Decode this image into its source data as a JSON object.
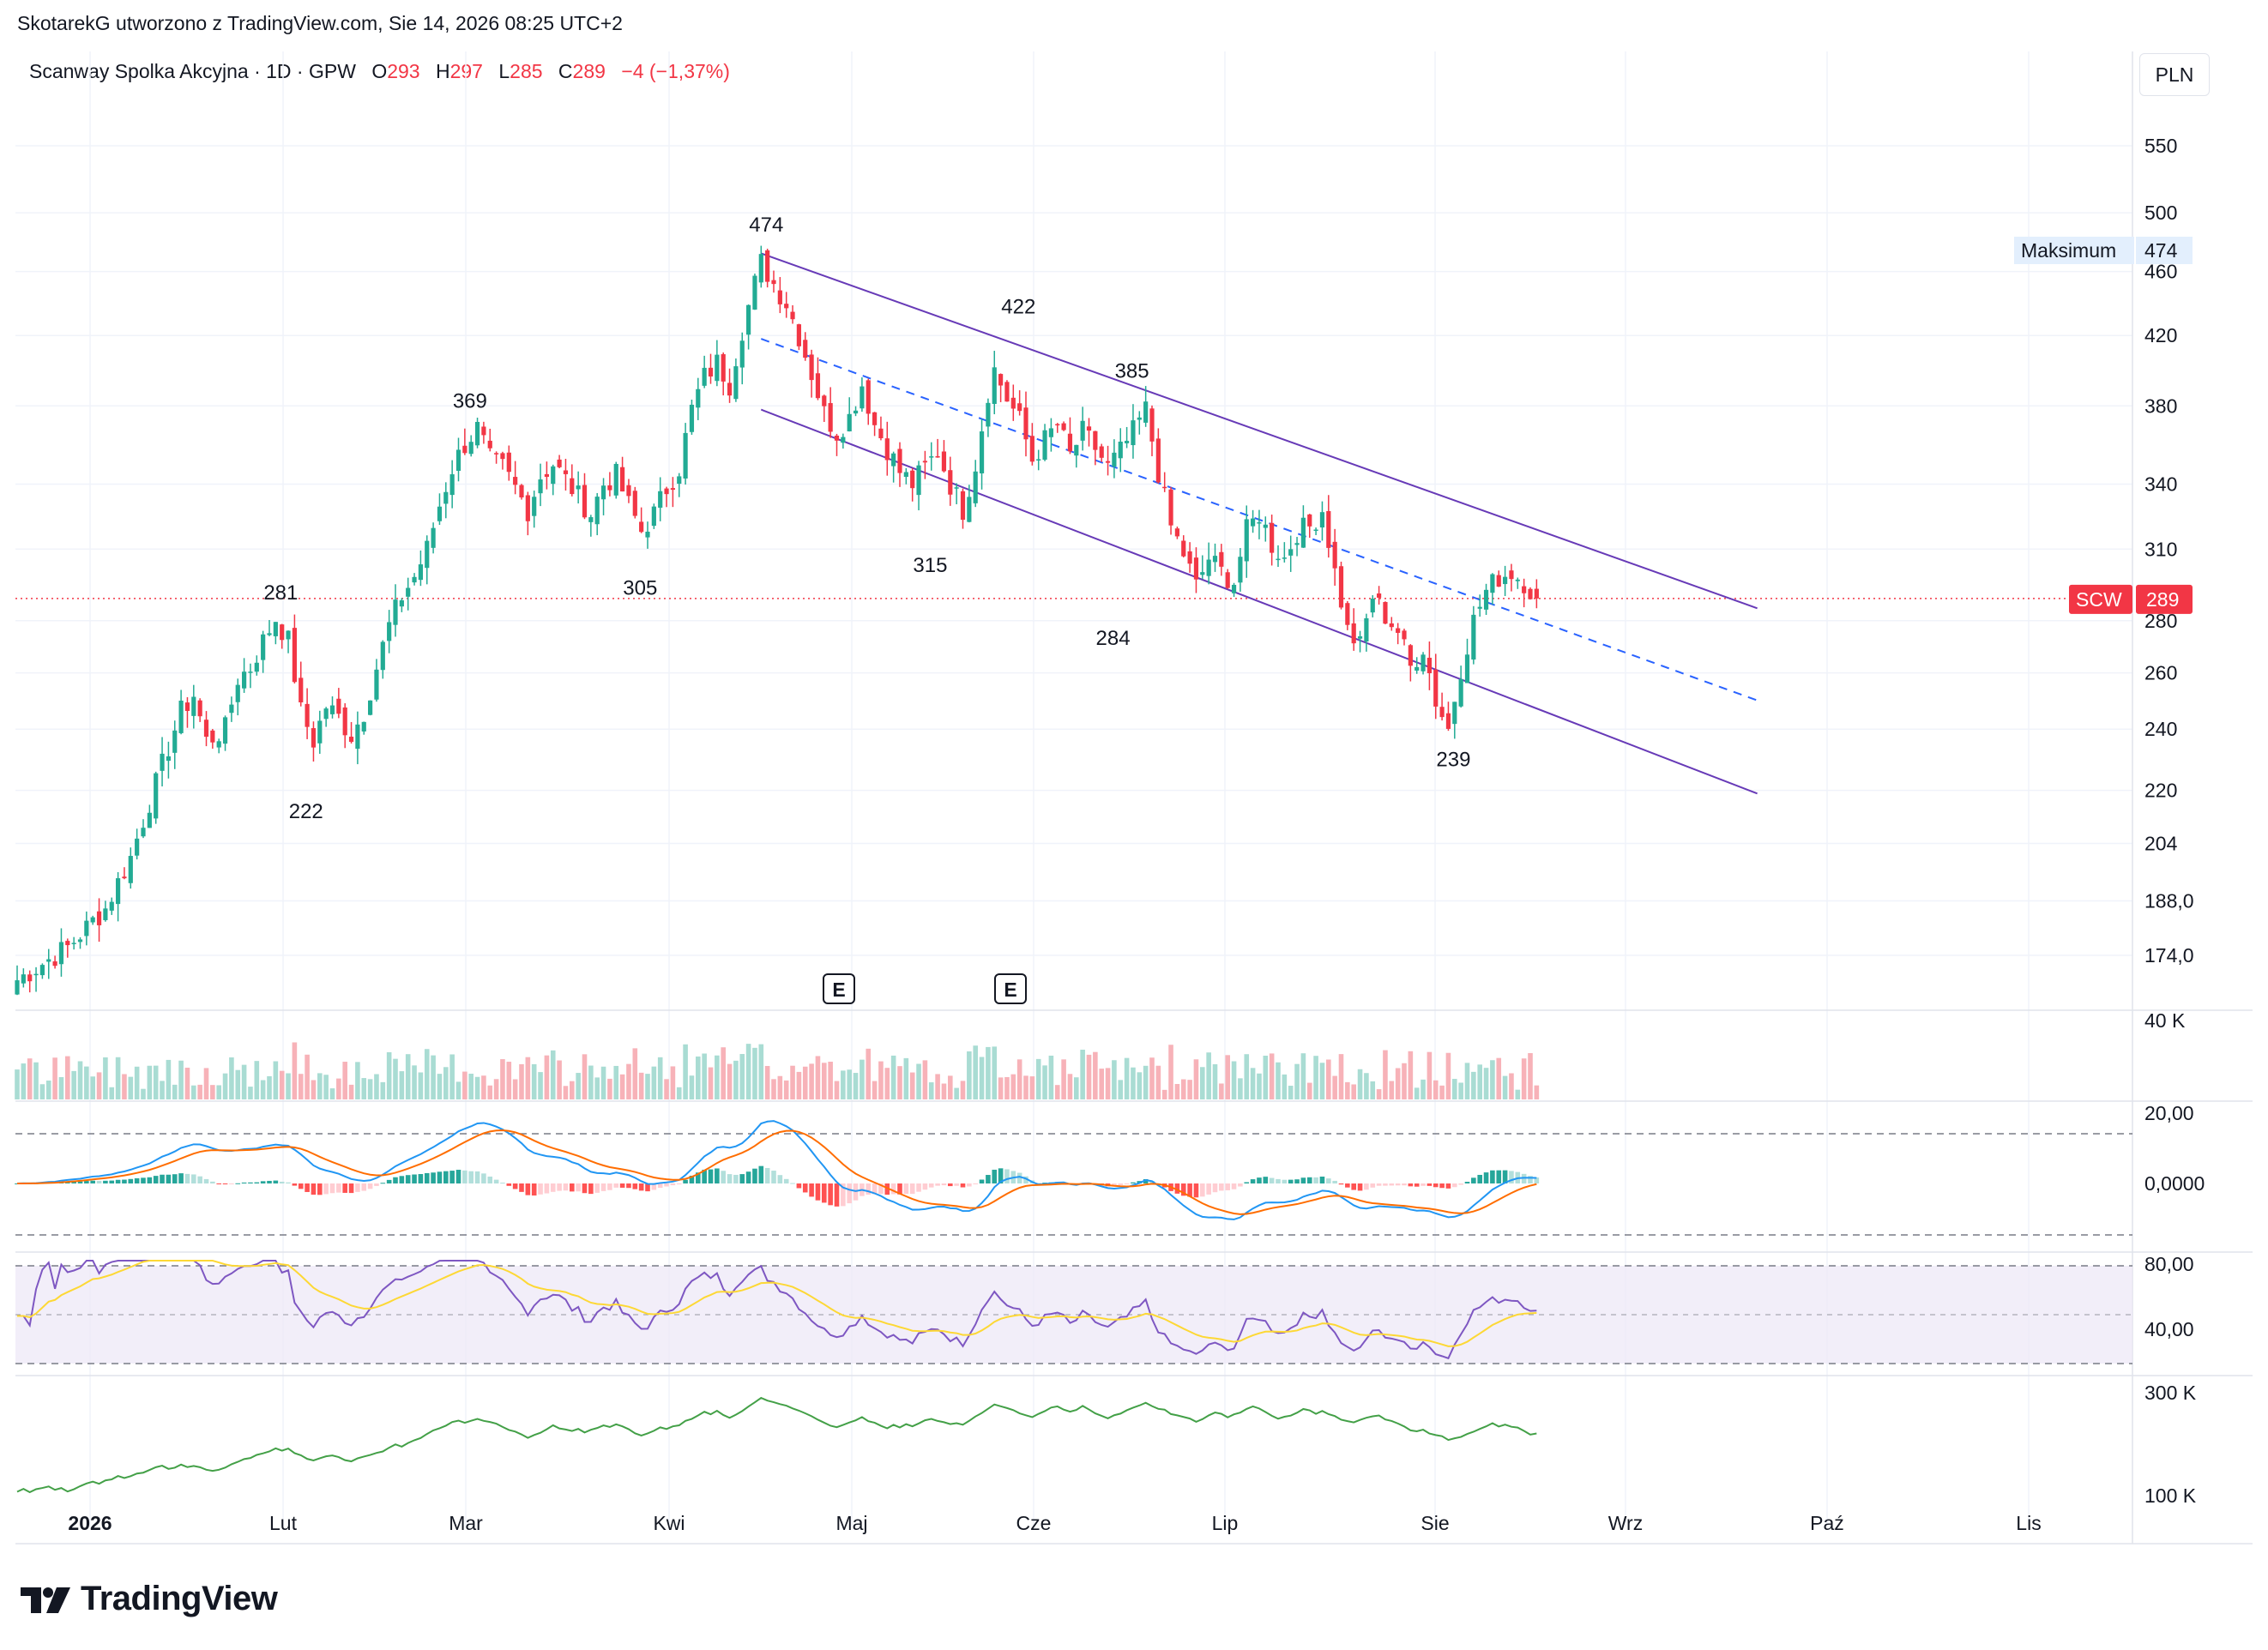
{
  "caption": "SkotarekG utworzono z TradingView.com, Sie 14, 2026 08:25 UTC+2",
  "legend": {
    "symbol": "Scanway Spolka Akcyjna · 1D · GPW",
    "o_label": "O",
    "o_value": "293",
    "h_label": "H",
    "h_value": "297",
    "l_label": "L",
    "l_value": "285",
    "c_label": "C",
    "c_value": "289",
    "change": "−4 (−1,37%)"
  },
  "currency": "PLN",
  "max_badge": {
    "label": "Maksimum",
    "value": "474"
  },
  "price_badge": {
    "ticker": "SCW",
    "value": "289"
  },
  "brand": "TradingView",
  "colors": {
    "up": "#22ab94",
    "down": "#f23645",
    "channel": "#673ab7",
    "midline": "#2962ff",
    "macd": "#2196f3",
    "signal": "#ff6d00",
    "rsi": "#7e57c2",
    "rsi_ma": "#fdd835",
    "obv": "#43a047"
  },
  "chart_data": {
    "type": "candlestick",
    "price_axis_ticks": [
      "550",
      "500",
      "460",
      "420",
      "380",
      "340",
      "310",
      "280",
      "260",
      "240",
      "220",
      "204",
      "188,0",
      "174,0"
    ],
    "x_axis_labels": [
      "2026",
      "Lut",
      "Mar",
      "Kwi",
      "Maj",
      "Cze",
      "Lip",
      "Sie",
      "Wrz",
      "Paź",
      "Lis"
    ],
    "peak_labels": [
      "474",
      "422",
      "385",
      "369",
      "281",
      "305",
      "315",
      "284",
      "222",
      "239"
    ],
    "events": [
      "E",
      "E"
    ],
    "last": {
      "open": 293,
      "high": 297,
      "low": 285,
      "close": 289
    },
    "price_path": [
      [
        0,
        168
      ],
      [
        8,
        176
      ],
      [
        14,
        186
      ],
      [
        18,
        200
      ],
      [
        22,
        222
      ],
      [
        26,
        246
      ],
      [
        28,
        252
      ],
      [
        30,
        236
      ],
      [
        33,
        240
      ],
      [
        35,
        258
      ],
      [
        37,
        262
      ],
      [
        39,
        272
      ],
      [
        41,
        281
      ],
      [
        43,
        272
      ],
      [
        45,
        246
      ],
      [
        47,
        236
      ],
      [
        49,
        248
      ],
      [
        51,
        244
      ],
      [
        53,
        238
      ],
      [
        55,
        246
      ],
      [
        57,
        262
      ],
      [
        59,
        278
      ],
      [
        61,
        290
      ],
      [
        63,
        298
      ],
      [
        65,
        310
      ],
      [
        67,
        330
      ],
      [
        69,
        348
      ],
      [
        71,
        360
      ],
      [
        73,
        368
      ],
      [
        75,
        352
      ],
      [
        77,
        348
      ],
      [
        79,
        338
      ],
      [
        81,
        328
      ],
      [
        83,
        344
      ],
      [
        85,
        350
      ],
      [
        87,
        342
      ],
      [
        89,
        334
      ],
      [
        91,
        326
      ],
      [
        93,
        340
      ],
      [
        95,
        344
      ],
      [
        97,
        330
      ],
      [
        99,
        318
      ],
      [
        101,
        326
      ],
      [
        103,
        338
      ],
      [
        105,
        348
      ],
      [
        107,
        378
      ],
      [
        109,
        396
      ],
      [
        111,
        404
      ],
      [
        113,
        392
      ],
      [
        115,
        424
      ],
      [
        117,
        452
      ],
      [
        118,
        466
      ],
      [
        120,
        452
      ],
      [
        122,
        440
      ],
      [
        124,
        420
      ],
      [
        126,
        398
      ],
      [
        128,
        376
      ],
      [
        130,
        366
      ],
      [
        132,
        374
      ],
      [
        134,
        392
      ],
      [
        136,
        370
      ],
      [
        138,
        358
      ],
      [
        140,
        346
      ],
      [
        142,
        340
      ],
      [
        144,
        348
      ],
      [
        146,
        356
      ],
      [
        148,
        340
      ],
      [
        150,
        328
      ],
      [
        152,
        350
      ],
      [
        154,
        388
      ],
      [
        155,
        400
      ],
      [
        157,
        384
      ],
      [
        159,
        372
      ],
      [
        161,
        352
      ],
      [
        163,
        362
      ],
      [
        165,
        370
      ],
      [
        167,
        354
      ],
      [
        169,
        366
      ],
      [
        171,
        358
      ],
      [
        173,
        348
      ],
      [
        175,
        356
      ],
      [
        177,
        366
      ],
      [
        179,
        378
      ],
      [
        181,
        346
      ],
      [
        183,
        320
      ],
      [
        185,
        308
      ],
      [
        187,
        294
      ],
      [
        189,
        306
      ],
      [
        191,
        300
      ],
      [
        193,
        296
      ],
      [
        195,
        318
      ],
      [
        197,
        326
      ],
      [
        199,
        312
      ],
      [
        201,
        306
      ],
      [
        203,
        318
      ],
      [
        205,
        320
      ],
      [
        207,
        328
      ],
      [
        209,
        300
      ],
      [
        211,
        276
      ],
      [
        213,
        270
      ],
      [
        215,
        290
      ],
      [
        217,
        282
      ],
      [
        219,
        276
      ],
      [
        221,
        262
      ],
      [
        223,
        270
      ],
      [
        225,
        250
      ],
      [
        227,
        240
      ],
      [
        229,
        262
      ],
      [
        231,
        280
      ],
      [
        233,
        292
      ],
      [
        235,
        298
      ],
      [
        237,
        300
      ],
      [
        239,
        296
      ],
      [
        241,
        289
      ]
    ],
    "volume_max_label": "40 K",
    "macd_ticks": [
      "20,00",
      "0,0000"
    ],
    "rsi_ticks": [
      "80,00",
      "40,00"
    ],
    "obv_ticks": [
      "300 K",
      "100 K"
    ]
  }
}
